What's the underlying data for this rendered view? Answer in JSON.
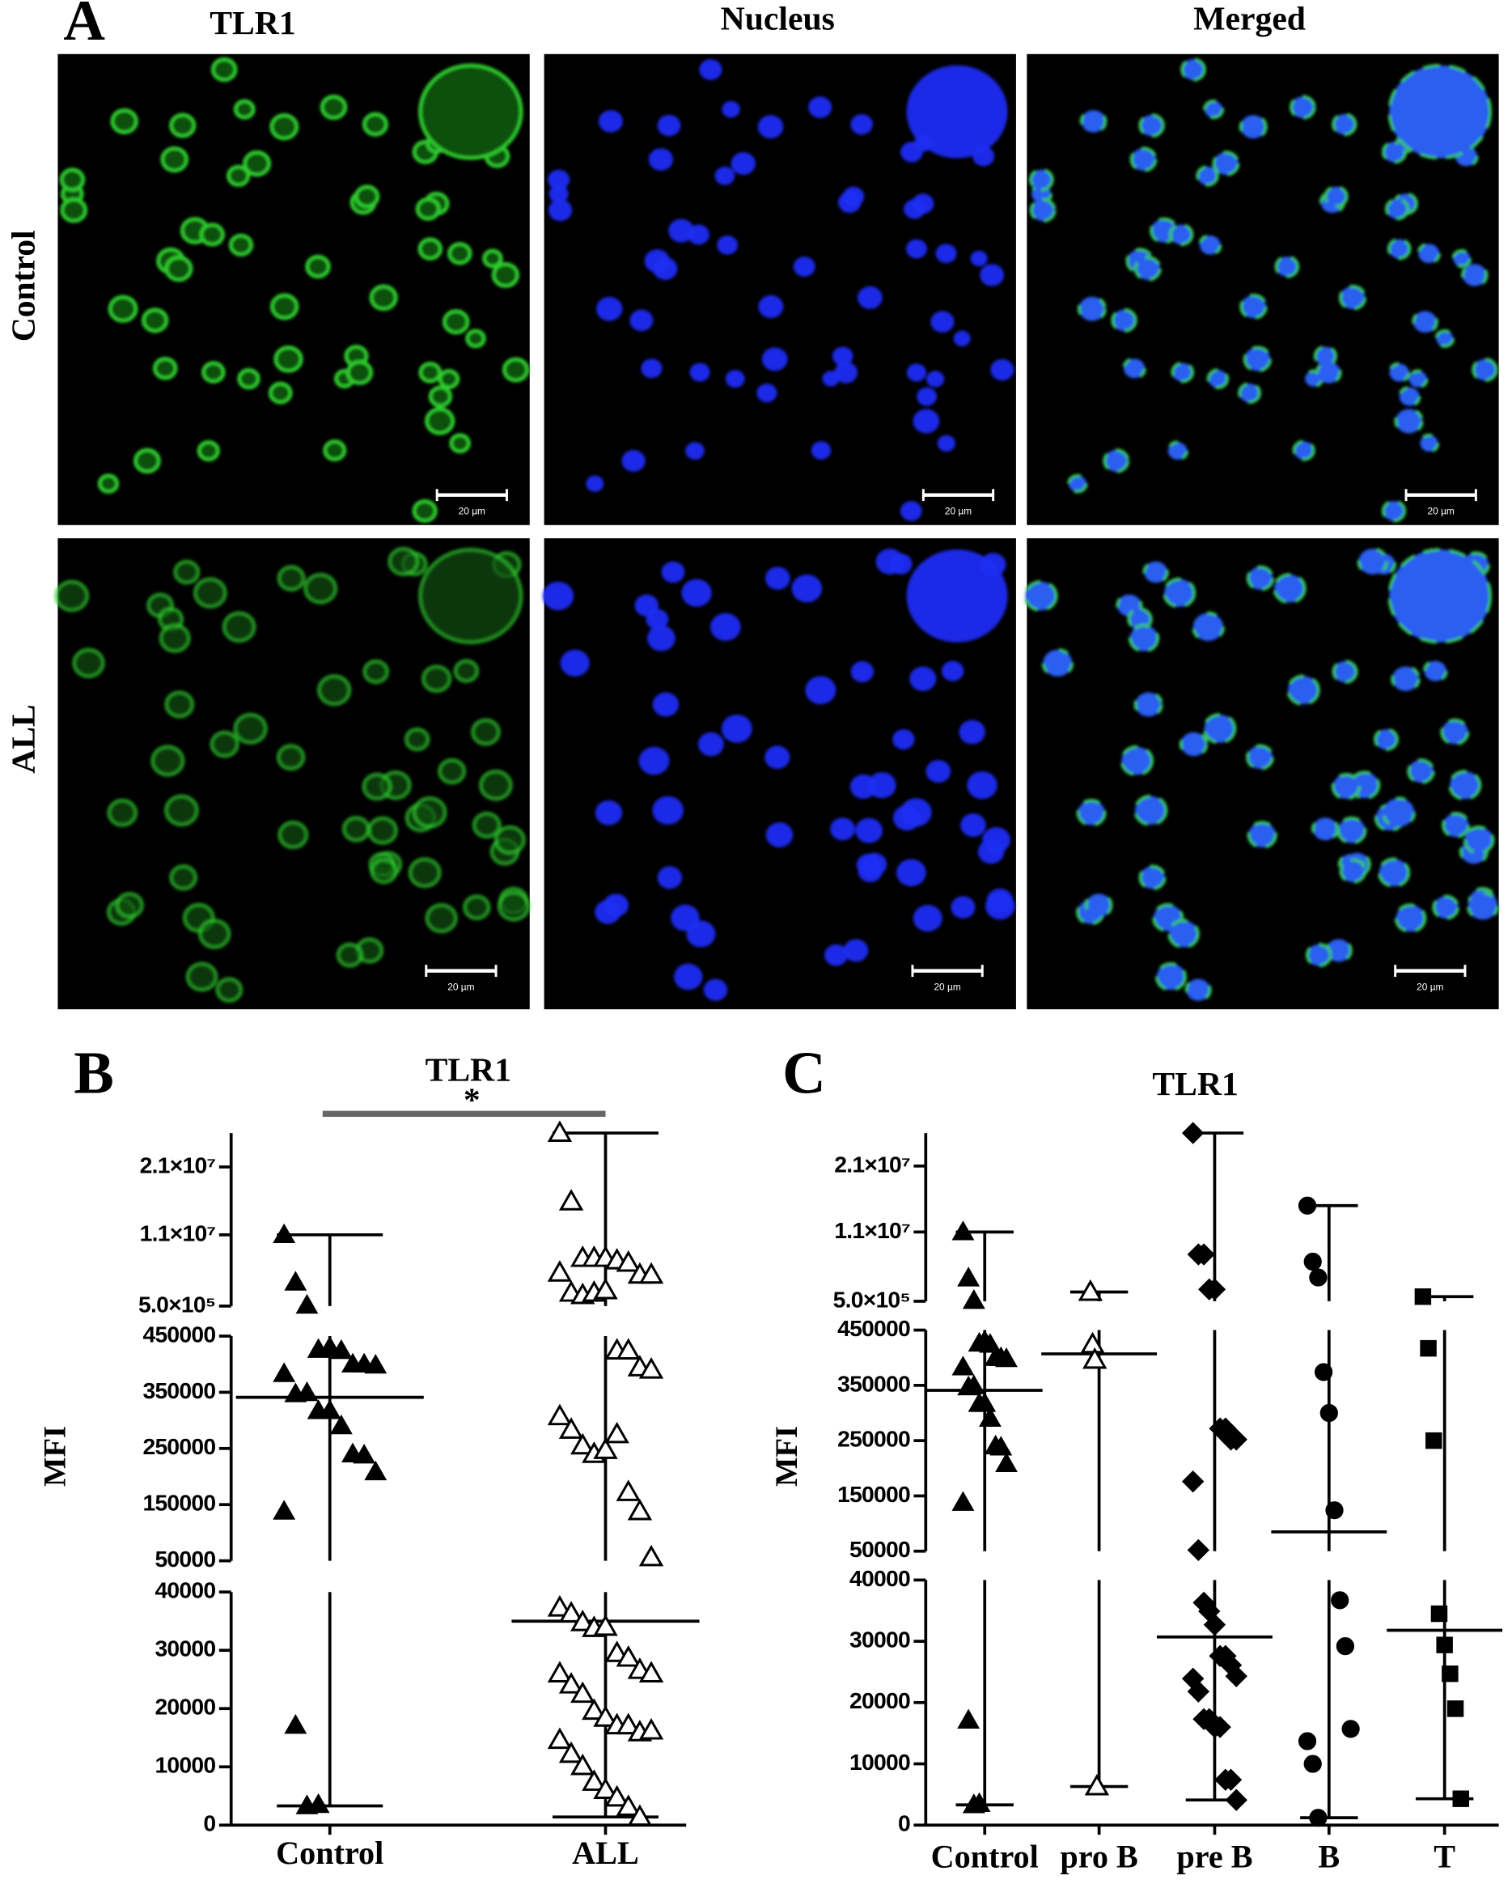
{
  "panel_a": {
    "panel_label": "A",
    "columns": [
      "TLR1",
      "Nucleus",
      "Merged"
    ],
    "rows": [
      "Control",
      "ALL"
    ],
    "scale_bar": "20 µm"
  },
  "chart_data": [
    {
      "type": "scatter",
      "panel_label": "B",
      "title": "TLR1",
      "annotation": "*",
      "ylabel": "MFI",
      "categories": [
        "Control",
        "ALL"
      ],
      "markers": [
        "triangle",
        "triangle-open"
      ],
      "color": "#000000",
      "values": [
        [
          11000000,
          4000000,
          600000,
          426000,
          430000,
          424000,
          400000,
          400000,
          398000,
          383000,
          347000,
          349000,
          317000,
          317000,
          290000,
          240000,
          238000,
          208000,
          138000,
          17100,
          3300,
          3500
        ],
        [
          26000000,
          15900000,
          7570000,
          7570000,
          7570000,
          7200000,
          6860000,
          5100000,
          5100000,
          5400000,
          2440000,
          2090000,
          2440000,
          2800000,
          424000,
          424000,
          394000,
          390000,
          307000,
          283000,
          255000,
          240000,
          247000,
          275000,
          172000,
          138000,
          56000,
          37300,
          36300,
          34800,
          33800,
          34000,
          29500,
          28700,
          26600,
          26000,
          26000,
          24100,
          22500,
          19600,
          18400,
          17100,
          17100,
          15900,
          16200,
          14600,
          12200,
          10100,
          7400,
          6000,
          4700,
          3100,
          1400
        ]
      ],
      "medians": [
        341000,
        35000
      ],
      "y_segments": [
        {
          "ylim": [
            0,
            40000
          ],
          "yticks": [
            0,
            10000,
            20000,
            30000,
            40000
          ]
        },
        {
          "ylim": [
            50000,
            450000
          ],
          "yticks": [
            50000,
            150000,
            250000,
            350000,
            450000
          ]
        },
        {
          "ylim": [
            500000,
            26000000
          ],
          "yticks": [
            {
              "value": 500000,
              "label": "5.0×10⁵"
            },
            {
              "value": 11000000,
              "label": "1.1×10⁷"
            },
            {
              "value": 21000000,
              "label": "2.1×10⁷"
            }
          ]
        }
      ]
    },
    {
      "type": "scatter",
      "panel_label": "C",
      "title": "TLR1",
      "ylabel": "MFI",
      "categories": [
        "Control",
        "pro B",
        "pre B",
        "B",
        "T"
      ],
      "markers": [
        "triangle",
        "triangle-open",
        "diamond",
        "circle",
        "square"
      ],
      "color": "#000000",
      "values": [
        [
          11000000,
          4000000,
          600000,
          426000,
          430000,
          424000,
          400000,
          400000,
          398000,
          383000,
          347000,
          349000,
          317000,
          317000,
          290000,
          240000,
          238000,
          208000,
          138000,
          17100,
          3300,
          3500
        ],
        [
          1900000,
          424000,
          396000,
          6300
        ],
        [
          26000000,
          7600000,
          7600000,
          2300000,
          2300000,
          272000,
          272000,
          252000,
          252000,
          176000,
          52000,
          36300,
          34900,
          32700,
          27600,
          27600,
          26100,
          24300,
          23900,
          21800,
          17300,
          17300,
          16000,
          16000,
          7400,
          7400,
          4100
        ],
        [
          15000000,
          6500000,
          4100000,
          374000,
          300000,
          124000,
          36700,
          29200,
          15700,
          13700,
          10000,
          1200
        ],
        [
          1200000,
          417000,
          250000,
          34500,
          29400,
          24700,
          19000,
          4300
        ]
      ],
      "medians": [
        341000,
        407000,
        30700,
        85000,
        31800
      ],
      "y_segments": [
        {
          "ylim": [
            0,
            40000
          ],
          "yticks": [
            0,
            10000,
            20000,
            30000,
            40000
          ]
        },
        {
          "ylim": [
            50000,
            450000
          ],
          "yticks": [
            50000,
            150000,
            250000,
            350000,
            450000
          ]
        },
        {
          "ylim": [
            500000,
            26000000
          ],
          "yticks": [
            {
              "value": 500000,
              "label": "5.0×10⁵"
            },
            {
              "value": 11000000,
              "label": "1.1×10⁷"
            },
            {
              "value": 21000000,
              "label": "2.1×10⁷"
            }
          ]
        }
      ]
    }
  ]
}
